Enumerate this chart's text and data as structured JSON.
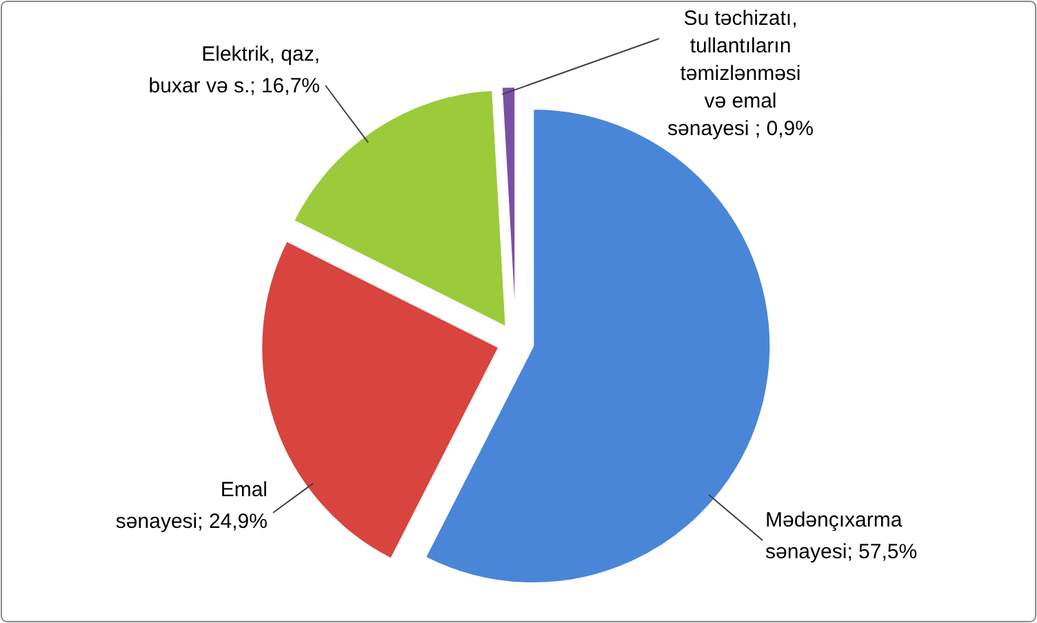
{
  "chart_data": {
    "type": "pie",
    "categories": [
      "Mədənçıxarma sənayesi",
      "Emal sənayesi",
      "Elektrik, qaz, buxar və s.",
      "Su təchizatı, tullantıların təmizlənməsi və emal sənayesi "
    ],
    "values": [
      57.5,
      24.9,
      16.7,
      0.9
    ],
    "value_labels": [
      "57,5%",
      "24,9%",
      "16,7%",
      "0,9%"
    ],
    "colors": [
      "#4a86d8",
      "#d9443f",
      "#9bcb3b",
      "#7b4fa8"
    ]
  }
}
